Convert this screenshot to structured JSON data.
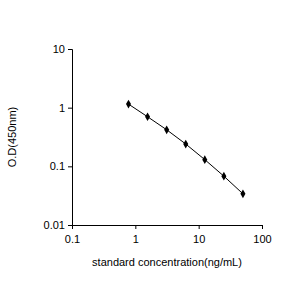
{
  "chart_data": {
    "type": "line",
    "x_label": "standard concentration(ng/mL)",
    "y_label": "O.D(450nm)",
    "x": [
      0.78,
      1.56,
      3.125,
      6.25,
      12.5,
      25,
      50
    ],
    "values": [
      1.15,
      0.7,
      0.42,
      0.24,
      0.13,
      0.068,
      0.034
    ],
    "color": "#000000",
    "marker": "diamond",
    "line_style": "solid",
    "log": true,
    "grid": false,
    "xlim": [
      0.1,
      100
    ],
    "xticks": [
      0.1,
      1,
      10,
      100
    ],
    "ylim": [
      0.01,
      10
    ],
    "yticks": [
      0.01,
      0.1,
      1,
      10
    ]
  }
}
